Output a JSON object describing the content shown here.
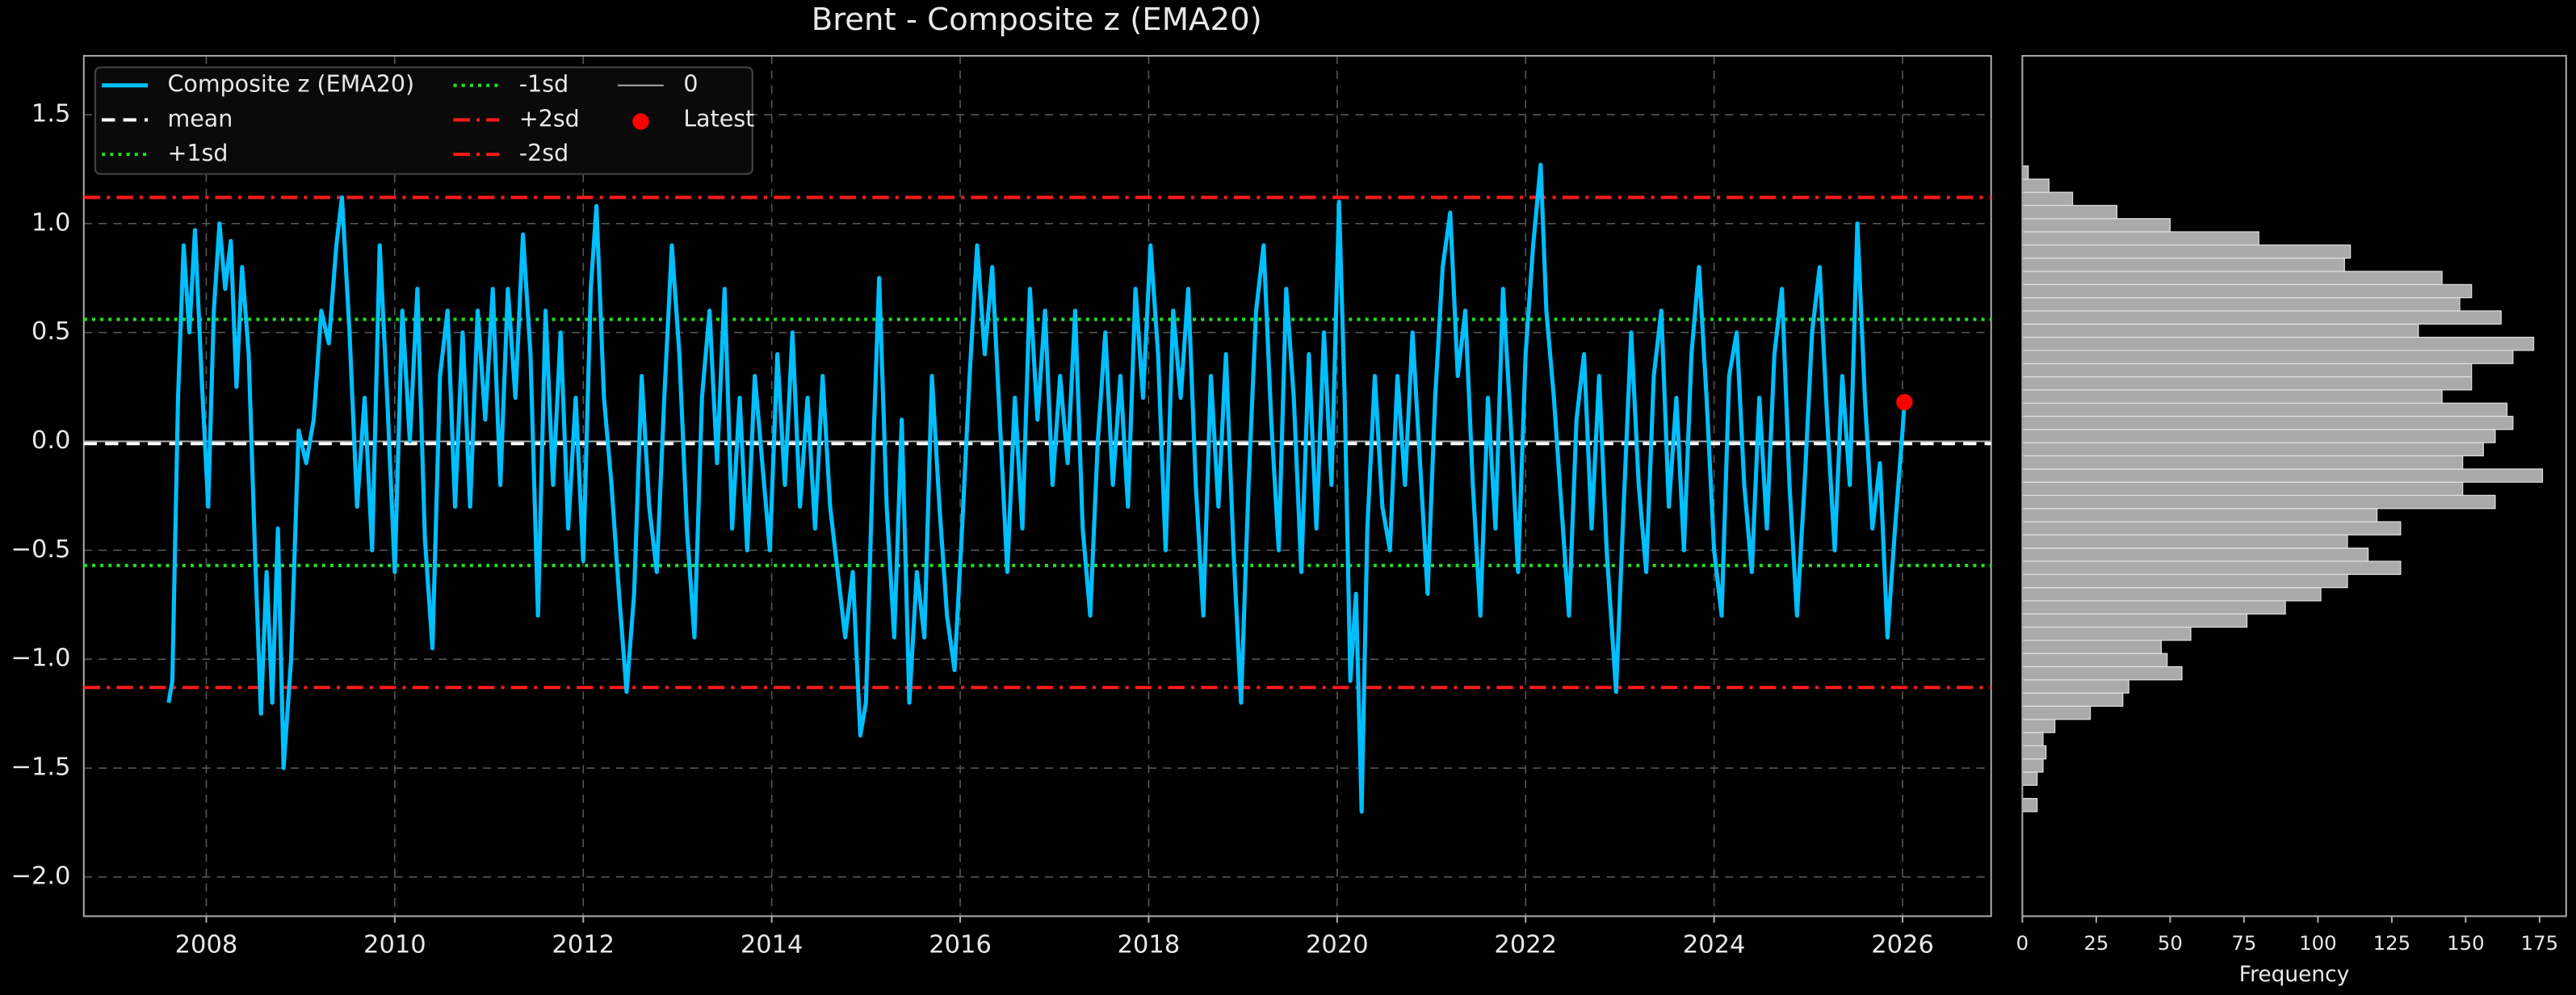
{
  "chart_data": [
    {
      "type": "line",
      "title": "Brent - Composite z (EMA20)",
      "x": [
        2007.6,
        2007.64,
        2007.7,
        2007.76,
        2007.82,
        2007.88,
        2007.95,
        2008.02,
        2008.08,
        2008.14,
        2008.2,
        2008.26,
        2008.32,
        2008.38,
        2008.45,
        2008.52,
        2008.58,
        2008.64,
        2008.7,
        2008.76,
        2008.82,
        2008.9,
        2008.98,
        2009.06,
        2009.14,
        2009.22,
        2009.3,
        2009.38,
        2009.44,
        2009.52,
        2009.6,
        2009.68,
        2009.76,
        2009.84,
        2009.92,
        2010.0,
        2010.08,
        2010.16,
        2010.24,
        2010.32,
        2010.4,
        2010.48,
        2010.56,
        2010.64,
        2010.72,
        2010.8,
        2010.88,
        2010.96,
        2011.04,
        2011.12,
        2011.2,
        2011.28,
        2011.36,
        2011.44,
        2011.52,
        2011.6,
        2011.68,
        2011.76,
        2011.84,
        2011.92,
        2012.0,
        2012.08,
        2012.14,
        2012.22,
        2012.3,
        2012.38,
        2012.46,
        2012.54,
        2012.62,
        2012.7,
        2012.78,
        2012.86,
        2012.94,
        2013.02,
        2013.1,
        2013.18,
        2013.26,
        2013.34,
        2013.42,
        2013.5,
        2013.58,
        2013.66,
        2013.74,
        2013.82,
        2013.9,
        2013.98,
        2014.06,
        2014.14,
        2014.22,
        2014.3,
        2014.38,
        2014.46,
        2014.54,
        2014.62,
        2014.7,
        2014.78,
        2014.86,
        2014.94,
        2015.0,
        2015.08,
        2015.14,
        2015.22,
        2015.3,
        2015.38,
        2015.46,
        2015.54,
        2015.62,
        2015.7,
        2015.78,
        2015.86,
        2015.94,
        2016.02,
        2016.1,
        2016.18,
        2016.26,
        2016.34,
        2016.42,
        2016.5,
        2016.58,
        2016.66,
        2016.74,
        2016.82,
        2016.9,
        2016.98,
        2017.06,
        2017.14,
        2017.22,
        2017.3,
        2017.38,
        2017.46,
        2017.54,
        2017.62,
        2017.7,
        2017.78,
        2017.86,
        2017.94,
        2018.02,
        2018.1,
        2018.18,
        2018.26,
        2018.34,
        2018.42,
        2018.5,
        2018.58,
        2018.66,
        2018.74,
        2018.82,
        2018.9,
        2018.98,
        2019.06,
        2019.14,
        2019.22,
        2019.3,
        2019.38,
        2019.46,
        2019.54,
        2019.62,
        2019.7,
        2019.78,
        2019.86,
        2019.94,
        2020.02,
        2020.08,
        2020.14,
        2020.2,
        2020.26,
        2020.32,
        2020.4,
        2020.48,
        2020.56,
        2020.64,
        2020.72,
        2020.8,
        2020.88,
        2020.96,
        2021.04,
        2021.12,
        2021.2,
        2021.28,
        2021.36,
        2021.44,
        2021.52,
        2021.6,
        2021.68,
        2021.76,
        2021.84,
        2021.92,
        2022.0,
        2022.08,
        2022.16,
        2022.22,
        2022.3,
        2022.38,
        2022.46,
        2022.54,
        2022.62,
        2022.7,
        2022.78,
        2022.86,
        2022.96,
        2023.04,
        2023.12,
        2023.2,
        2023.28,
        2023.36,
        2023.44,
        2023.52,
        2023.6,
        2023.68,
        2023.76,
        2023.84,
        2023.92,
        2024.0,
        2024.08,
        2024.16,
        2024.24,
        2024.32,
        2024.4,
        2024.48,
        2024.56,
        2024.64,
        2024.72,
        2024.8,
        2024.88,
        2024.96,
        2025.04,
        2025.12,
        2025.2,
        2025.28,
        2025.36,
        2025.44,
        2025.52,
        2025.6,
        2025.68,
        2025.76,
        2025.84,
        2025.92,
        2026.0,
        2026.02
      ],
      "series": [
        {
          "name": "Composite z (EMA20)",
          "color": "#00bfff",
          "values": [
            -1.2,
            -1.1,
            0.2,
            0.9,
            0.5,
            0.97,
            0.3,
            -0.3,
            0.6,
            1.0,
            0.7,
            0.92,
            0.25,
            0.8,
            0.4,
            -0.55,
            -1.25,
            -0.6,
            -1.2,
            -0.4,
            -1.5,
            -1.0,
            0.05,
            -0.1,
            0.1,
            0.6,
            0.45,
            0.9,
            1.12,
            0.5,
            -0.3,
            0.2,
            -0.5,
            0.9,
            0.2,
            -0.6,
            0.6,
            0.0,
            0.7,
            -0.45,
            -0.95,
            0.3,
            0.6,
            -0.3,
            0.5,
            -0.3,
            0.6,
            0.1,
            0.7,
            -0.2,
            0.7,
            0.2,
            0.95,
            0.4,
            -0.8,
            0.6,
            -0.2,
            0.5,
            -0.4,
            0.2,
            -0.55,
            0.7,
            1.08,
            0.2,
            -0.2,
            -0.7,
            -1.15,
            -0.7,
            0.3,
            -0.3,
            -0.6,
            0.2,
            0.9,
            0.4,
            -0.4,
            -0.9,
            0.2,
            0.6,
            -0.1,
            0.7,
            -0.4,
            0.2,
            -0.5,
            0.3,
            -0.1,
            -0.5,
            0.4,
            -0.2,
            0.5,
            -0.3,
            0.2,
            -0.4,
            0.3,
            -0.3,
            -0.6,
            -0.9,
            -0.6,
            -1.35,
            -1.2,
            0.0,
            0.75,
            -0.3,
            -0.9,
            0.1,
            -1.2,
            -0.6,
            -0.9,
            0.3,
            -0.3,
            -0.8,
            -1.05,
            -0.4,
            0.3,
            0.9,
            0.4,
            0.8,
            0.1,
            -0.6,
            0.2,
            -0.4,
            0.7,
            0.1,
            0.6,
            -0.2,
            0.3,
            -0.1,
            0.6,
            -0.4,
            -0.8,
            0.0,
            0.5,
            -0.2,
            0.3,
            -0.3,
            0.7,
            0.2,
            0.9,
            0.4,
            -0.5,
            0.6,
            0.2,
            0.7,
            -0.2,
            -0.8,
            0.3,
            -0.3,
            0.4,
            -0.5,
            -1.2,
            -0.2,
            0.6,
            0.9,
            0.1,
            -0.5,
            0.7,
            0.2,
            -0.6,
            0.4,
            -0.4,
            0.5,
            -0.2,
            1.1,
            0.2,
            -1.1,
            -0.7,
            -1.7,
            -0.4,
            0.3,
            -0.3,
            -0.5,
            0.3,
            -0.2,
            0.5,
            -0.1,
            -0.7,
            0.2,
            0.8,
            1.05,
            0.3,
            0.6,
            -0.2,
            -0.8,
            0.2,
            -0.4,
            0.7,
            0.1,
            -0.6,
            0.4,
            0.9,
            1.27,
            0.6,
            0.2,
            -0.3,
            -0.8,
            0.1,
            0.4,
            -0.4,
            0.3,
            -0.5,
            -1.15,
            -0.3,
            0.5,
            -0.2,
            -0.6,
            0.3,
            0.6,
            -0.3,
            0.2,
            -0.5,
            0.4,
            0.8,
            0.2,
            -0.5,
            -0.8,
            0.3,
            0.5,
            -0.2,
            -0.6,
            0.2,
            -0.4,
            0.4,
            0.7,
            -0.2,
            -0.8,
            -0.2,
            0.5,
            0.8,
            0.1,
            -0.5,
            0.3,
            -0.2,
            1.0,
            0.2,
            -0.4,
            -0.1,
            -0.9,
            -0.4,
            0.05,
            0.18
          ]
        }
      ],
      "reference_lines": [
        {
          "name": "mean",
          "value": -0.01,
          "color": "#ffffff",
          "style": "dashed"
        },
        {
          "name": "+1sd",
          "value": 0.56,
          "color": "#22dd22",
          "style": "dotted"
        },
        {
          "name": "-1sd",
          "value": -0.57,
          "color": "#22dd22",
          "style": "dotted"
        },
        {
          "name": "+2sd",
          "value": 1.12,
          "color": "#ff1a1a",
          "style": "dashdot"
        },
        {
          "name": "-2sd",
          "value": -1.13,
          "color": "#ff1a1a",
          "style": "dashdot"
        },
        {
          "name": "0",
          "value": 0,
          "color": "#aaaaaa",
          "style": "solid"
        }
      ],
      "latest": {
        "name": "Latest",
        "x": 2026.02,
        "value": 0.18,
        "color": "#ff0000"
      },
      "xlim": [
        2006.7,
        2026.94
      ],
      "xticks": [
        2008,
        2010,
        2012,
        2014,
        2016,
        2018,
        2020,
        2022,
        2024,
        2026
      ],
      "ylim": [
        -2.18,
        1.77
      ],
      "yticks": [
        {
          "value": -2,
          "label": "−2.0"
        },
        {
          "value": -1.5,
          "label": "−1.5"
        },
        {
          "value": -1,
          "label": "−1.0"
        },
        {
          "value": -0.5,
          "label": "−0.5"
        },
        {
          "value": 0,
          "label": "0.0"
        },
        0.5,
        {
          "value": 1,
          "label": "1.0"
        },
        1.5
      ],
      "grid": true,
      "legend": "upper left"
    },
    {
      "type": "histogram",
      "orientation": "horizontal",
      "bins": [
        -1.7,
        -1.6395,
        -1.579,
        -1.5185,
        -1.458,
        -1.3975,
        -1.337,
        -1.2765,
        -1.216,
        -1.1555,
        -1.095,
        -1.0345,
        -0.974,
        -0.9135,
        -0.853,
        -0.7925,
        -0.732,
        -0.6715,
        -0.611,
        -0.5505,
        -0.49,
        -0.4295,
        -0.369,
        -0.3085,
        -0.248,
        -0.1875,
        -0.127,
        -0.0665,
        -0.006,
        0.0545,
        0.115,
        0.1755,
        0.236,
        0.2965,
        0.357,
        0.4175,
        0.478,
        0.5385,
        0.599,
        0.6595,
        0.72,
        0.7805,
        0.841,
        0.9015,
        0.962,
        1.0225,
        1.083,
        1.1435,
        1.204,
        1.2645
      ],
      "counts": [
        5,
        0,
        5,
        7,
        8,
        7,
        11,
        23,
        34,
        36,
        54,
        49,
        47,
        57,
        76,
        89,
        101,
        110,
        128,
        117,
        110,
        128,
        120,
        160,
        149,
        176,
        149,
        156,
        160,
        166,
        164,
        142,
        152,
        152,
        166,
        173,
        134,
        162,
        148,
        152,
        142,
        109,
        111,
        80,
        50,
        32,
        17,
        9,
        2
      ],
      "color": "#aaaaaa",
      "xlabel": "Frequency",
      "xlim": [
        0,
        184
      ],
      "xticks": [
        0,
        25,
        50,
        75,
        100,
        125,
        150,
        175
      ]
    }
  ]
}
